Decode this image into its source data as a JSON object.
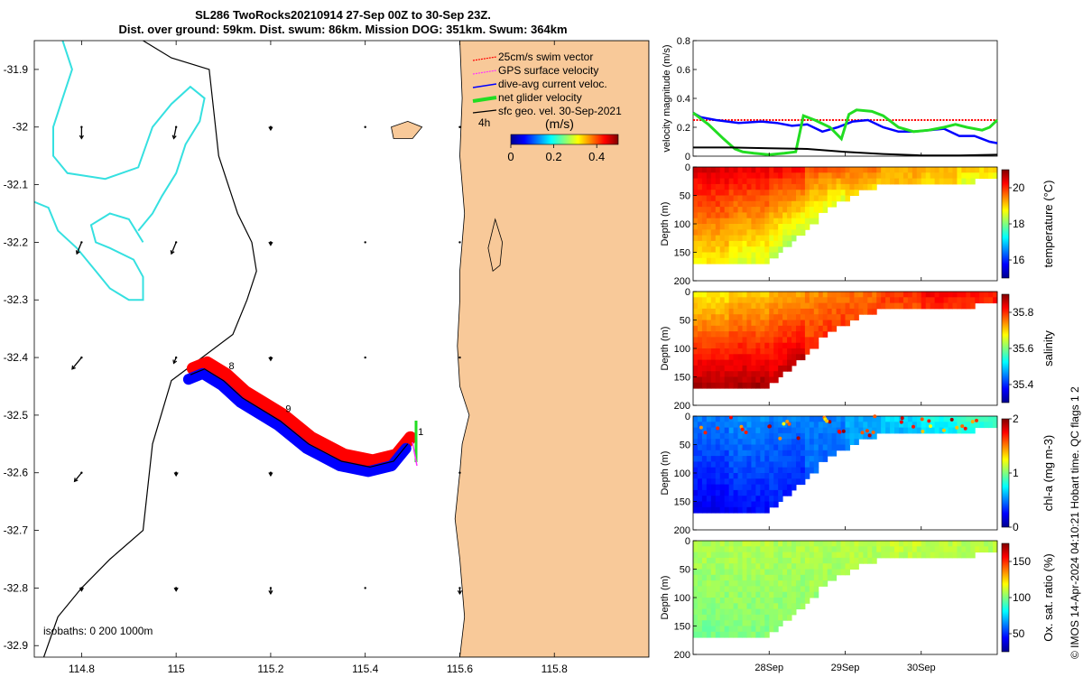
{
  "title_line1": "SL286 TwoRocks20210914 27-Sep 00Z to 30-Sep 23Z.",
  "title_line2": "Dist. over ground: 59km. Dist. swum: 86km. Mission DOG: 351km. Swum: 364km",
  "footer": "© IMOS 14-Apr-2024 04:10:21 Hobart time. QC flags 1  2",
  "colors": {
    "land": "#f8c999",
    "coast": "#000000",
    "isobath": "#35e0e0",
    "swim": "#ff0000",
    "gps": "#ff33ff",
    "dac": "#0000ff",
    "net": "#22dd22",
    "sfc": "#000000",
    "grid": "#000000"
  },
  "chart_data": [
    {
      "id": "map",
      "type": "map",
      "xlim": [
        114.7,
        116.0
      ],
      "ylim": [
        -32.92,
        -31.85
      ],
      "x_ticks": [
        "114.8",
        "115",
        "115.2",
        "115.4",
        "115.6",
        "115.8"
      ],
      "x_tick_values": [
        114.8,
        115.0,
        115.2,
        115.4,
        115.6,
        115.8
      ],
      "y_ticks": [
        "-31.9",
        "-32",
        "-32.1",
        "-32.2",
        "-32.3",
        "-32.4",
        "-32.5",
        "-32.6",
        "-32.7",
        "-32.8",
        "-32.9"
      ],
      "y_tick_values": [
        -31.9,
        -32.0,
        -32.1,
        -32.2,
        -32.3,
        -32.4,
        -32.5,
        -32.6,
        -32.7,
        -32.8,
        -32.9
      ],
      "legend": [
        "25cm/s swim vector",
        "GPS surface velocity",
        "dive-avg current veloc.",
        "net glider velocity",
        "sfc geo. vel. 30-Sep-2021"
      ],
      "legend_time": "4h",
      "colorbar_title": "(m/s)",
      "colorbar_ticks": [
        "0",
        "0.2",
        "0.4"
      ],
      "colorbar_values": [
        0,
        0.2,
        0.4
      ],
      "colorbar_range": [
        0,
        0.5
      ],
      "isobath_label": "isobaths: 0   200  1000m",
      "track_labels": [
        {
          "text": "1",
          "lon": 115.5,
          "lat": -32.535
        },
        {
          "text": "9",
          "lon": 115.22,
          "lat": -32.495
        },
        {
          "text": "8",
          "lon": 115.1,
          "lat": -32.42
        }
      ],
      "track": [
        [
          115.49,
          -32.55
        ],
        [
          115.46,
          -32.58
        ],
        [
          115.41,
          -32.59
        ],
        [
          115.35,
          -32.58
        ],
        [
          115.28,
          -32.55
        ],
        [
          115.22,
          -32.51
        ],
        [
          115.14,
          -32.47
        ],
        [
          115.1,
          -32.44
        ],
        [
          115.06,
          -32.42
        ],
        [
          115.03,
          -32.43
        ]
      ],
      "coastline": [
        [
          115.6,
          -31.85
        ],
        [
          115.605,
          -31.95
        ],
        [
          115.6,
          -32.05
        ],
        [
          115.61,
          -32.15
        ],
        [
          115.6,
          -32.25
        ],
        [
          115.6,
          -32.3
        ],
        [
          115.595,
          -32.38
        ],
        [
          115.6,
          -32.45
        ],
        [
          115.62,
          -32.5
        ],
        [
          115.605,
          -32.55
        ],
        [
          115.6,
          -32.6
        ],
        [
          115.59,
          -32.68
        ],
        [
          115.6,
          -32.75
        ],
        [
          115.61,
          -32.85
        ],
        [
          115.6,
          -32.92
        ]
      ],
      "garden_island": [
        [
          115.675,
          -32.16
        ],
        [
          115.69,
          -32.2
        ],
        [
          115.685,
          -32.24
        ],
        [
          115.67,
          -32.25
        ],
        [
          115.66,
          -32.21
        ]
      ],
      "rottnest_island": [
        [
          115.455,
          -32.0
        ],
        [
          115.49,
          -31.99
        ],
        [
          115.52,
          -32.0
        ],
        [
          115.5,
          -32.02
        ],
        [
          115.46,
          -32.02
        ]
      ],
      "shelf_contour": [
        [
          114.93,
          -31.85
        ],
        [
          114.99,
          -31.88
        ],
        [
          115.07,
          -31.9
        ],
        [
          115.09,
          -32.05
        ],
        [
          115.13,
          -32.15
        ],
        [
          115.16,
          -32.2
        ],
        [
          115.17,
          -32.25
        ],
        [
          115.15,
          -32.3
        ],
        [
          115.12,
          -32.36
        ],
        [
          114.99,
          -32.44
        ],
        [
          114.95,
          -32.55
        ],
        [
          114.93,
          -32.7
        ],
        [
          114.86,
          -32.75
        ],
        [
          114.8,
          -32.8
        ],
        [
          114.75,
          -32.85
        ],
        [
          114.72,
          -32.92
        ]
      ],
      "isobath_1": [
        [
          114.76,
          -31.85
        ],
        [
          114.78,
          -31.9
        ],
        [
          114.76,
          -31.95
        ],
        [
          114.74,
          -32.0
        ],
        [
          114.74,
          -32.05
        ],
        [
          114.77,
          -32.08
        ],
        [
          114.85,
          -32.09
        ],
        [
          114.92,
          -32.07
        ],
        [
          114.95,
          -32.0
        ],
        [
          114.99,
          -31.96
        ],
        [
          115.03,
          -31.93
        ],
        [
          115.06,
          -31.95
        ],
        [
          115.05,
          -31.99
        ],
        [
          115.02,
          -32.03
        ],
        [
          115.0,
          -32.08
        ],
        [
          114.97,
          -32.12
        ],
        [
          114.95,
          -32.15
        ],
        [
          114.92,
          -32.18
        ]
      ],
      "isobath_2": [
        [
          114.7,
          -32.13
        ],
        [
          114.73,
          -32.14
        ],
        [
          114.75,
          -32.18
        ],
        [
          114.79,
          -32.21
        ],
        [
          114.83,
          -32.25
        ],
        [
          114.86,
          -32.28
        ],
        [
          114.9,
          -32.3
        ],
        [
          114.93,
          -32.3
        ],
        [
          114.93,
          -32.26
        ],
        [
          114.91,
          -32.23
        ],
        [
          114.86,
          -32.21
        ],
        [
          114.83,
          -32.2
        ],
        [
          114.82,
          -32.17
        ],
        [
          114.86,
          -32.15
        ],
        [
          114.9,
          -32.16
        ],
        [
          114.93,
          -32.2
        ]
      ],
      "vectors": [
        [
          114.8,
          -32.0,
          0,
          -0.02
        ],
        [
          114.8,
          -32.2,
          -0.01,
          -0.02
        ],
        [
          114.8,
          -32.4,
          -0.02,
          -0.02
        ],
        [
          114.8,
          -32.6,
          -0.015,
          -0.015
        ],
        [
          114.8,
          -32.8,
          0,
          -0.005
        ],
        [
          115.0,
          -32.0,
          -0.005,
          -0.02
        ],
        [
          115.0,
          -32.2,
          -0.01,
          -0.02
        ],
        [
          115.0,
          -32.4,
          -0.005,
          -0.01
        ],
        [
          115.0,
          -32.6,
          0,
          -0.005
        ],
        [
          115.0,
          -32.8,
          0,
          -0.005
        ],
        [
          115.2,
          -32.0,
          0,
          -0.005
        ],
        [
          115.2,
          -32.2,
          0,
          -0.005
        ],
        [
          115.2,
          -32.4,
          0,
          -0.005
        ],
        [
          115.2,
          -32.6,
          0,
          -0.005
        ],
        [
          115.2,
          -32.8,
          0,
          -0.01
        ],
        [
          115.4,
          -32.0,
          0,
          0
        ],
        [
          115.4,
          -32.2,
          0,
          0
        ],
        [
          115.4,
          -32.4,
          0,
          0
        ],
        [
          115.4,
          -32.6,
          0,
          0
        ],
        [
          115.4,
          -32.8,
          0,
          0
        ],
        [
          115.6,
          -32.0,
          0,
          0
        ],
        [
          115.6,
          -32.2,
          0,
          0
        ],
        [
          115.6,
          -32.4,
          0,
          0
        ],
        [
          115.6,
          -32.6,
          0,
          0
        ],
        [
          115.6,
          -32.8,
          0,
          -0.01
        ]
      ]
    },
    {
      "id": "velocity",
      "type": "line",
      "ylabel": "velocity magnitude (m/s)",
      "ylim": [
        0,
        0.8
      ],
      "y_ticks": [
        "0",
        "0.2",
        "0.4",
        "0.6",
        "0.8"
      ],
      "y_tick_values": [
        0,
        0.2,
        0.4,
        0.6,
        0.8
      ],
      "xlim": [
        0,
        4
      ],
      "series": [
        {
          "name": "swim",
          "color": "#ff0000",
          "x": [
            0,
            1,
            2,
            3,
            4
          ],
          "values": [
            0.25,
            0.25,
            0.25,
            0.25,
            0.25
          ]
        },
        {
          "name": "dive-avg",
          "color": "#0000ff",
          "x": [
            0,
            0.1,
            0.3,
            0.6,
            0.9,
            1.1,
            1.3,
            1.5,
            1.7,
            1.9,
            2.1,
            2.3,
            2.5,
            2.7,
            2.9,
            3.1,
            3.3,
            3.5,
            3.7,
            3.8,
            3.9,
            4
          ],
          "values": [
            0.3,
            0.27,
            0.25,
            0.23,
            0.24,
            0.23,
            0.21,
            0.22,
            0.17,
            0.2,
            0.24,
            0.25,
            0.2,
            0.17,
            0.17,
            0.18,
            0.19,
            0.14,
            0.14,
            0.12,
            0.1,
            0.09
          ]
        },
        {
          "name": "net glider",
          "color": "#22dd22",
          "x": [
            0,
            0.2,
            0.4,
            0.55,
            0.65,
            0.8,
            1.0,
            1.2,
            1.35,
            1.45,
            1.6,
            1.8,
            1.95,
            2.05,
            2.15,
            2.35,
            2.5,
            2.7,
            2.9,
            3.1,
            3.3,
            3.45,
            3.6,
            3.8,
            3.9,
            4
          ],
          "values": [
            0.3,
            0.22,
            0.12,
            0.05,
            0.03,
            0.02,
            0.01,
            0.02,
            0.03,
            0.28,
            0.25,
            0.2,
            0.12,
            0.29,
            0.32,
            0.31,
            0.28,
            0.2,
            0.17,
            0.18,
            0.2,
            0.22,
            0.2,
            0.18,
            0.2,
            0.25
          ]
        },
        {
          "name": "sfc geo",
          "color": "#000000",
          "x": [
            0,
            0.5,
            1,
            1.5,
            2,
            2.5,
            3,
            3.5,
            4
          ],
          "values": [
            0.06,
            0.06,
            0.055,
            0.05,
            0.03,
            0.015,
            0.005,
            0.005,
            0.01
          ]
        }
      ]
    },
    {
      "id": "temperature",
      "type": "heatmap",
      "ylabel": "Depth (m)",
      "colorbar_label": "temperature (°C)",
      "colorbar_ticks": [
        "16",
        "18",
        "20"
      ],
      "colorbar_values": [
        16,
        18,
        20
      ],
      "crange": [
        15,
        21
      ],
      "depth_max": 200,
      "y_ticks": [
        "0",
        "50",
        "100",
        "150",
        "200"
      ],
      "profile_surface": [
        20.5,
        20.4,
        20.3,
        19.8,
        19.6,
        19.3,
        19.2,
        19.1
      ],
      "profile_bottom": [
        18.8,
        18.5,
        18.3,
        18.5,
        19.0,
        19.2,
        19.0,
        18.6
      ]
    },
    {
      "id": "salinity",
      "type": "heatmap",
      "ylabel": "Depth (m)",
      "colorbar_label": "salinity",
      "colorbar_ticks": [
        "35.4",
        "35.6",
        "35.8"
      ],
      "colorbar_values": [
        35.4,
        35.6,
        35.8
      ],
      "crange": [
        35.3,
        35.9
      ],
      "depth_max": 200,
      "y_ticks": [
        "0",
        "50",
        "100",
        "150",
        "200"
      ],
      "profile_surface": [
        35.68,
        35.7,
        35.72,
        35.74,
        35.76,
        35.8,
        35.83,
        35.82
      ],
      "profile_bottom": [
        35.88,
        35.88,
        35.86,
        35.8,
        35.78,
        35.78,
        35.8,
        35.8
      ]
    },
    {
      "id": "chla",
      "type": "heatmap",
      "ylabel": "Depth (m)",
      "colorbar_label": "chl-a (mg m-3)",
      "colorbar_ticks": [
        "0",
        "1",
        "2"
      ],
      "colorbar_values": [
        0,
        1,
        2
      ],
      "crange": [
        0,
        2
      ],
      "depth_max": 200,
      "y_ticks": [
        "0",
        "50",
        "100",
        "150",
        "200"
      ],
      "profile_surface": [
        0.5,
        0.55,
        0.5,
        0.5,
        0.6,
        0.7,
        0.8,
        0.9
      ],
      "profile_bottom": [
        0.2,
        0.25,
        0.3,
        0.45,
        0.55,
        0.6,
        0.7,
        0.8
      ]
    },
    {
      "id": "oxygen",
      "type": "heatmap",
      "ylabel": "Depth (m)",
      "colorbar_label": "Ox. sat. ratio (%)",
      "colorbar_ticks": [
        "50",
        "100",
        "150"
      ],
      "colorbar_values": [
        50,
        100,
        150
      ],
      "crange": [
        25,
        175
      ],
      "depth_max": 200,
      "y_ticks": [
        "0",
        "50",
        "100",
        "150",
        "200"
      ],
      "x_ticks": [
        "28Sep",
        "29Sep",
        "30Sep"
      ],
      "x_tick_values": [
        1,
        2,
        3
      ],
      "profile_surface": [
        108,
        108,
        107,
        108,
        109,
        112,
        110,
        108
      ],
      "profile_bottom": [
        98,
        100,
        102,
        104,
        106,
        108,
        108,
        108
      ]
    }
  ]
}
